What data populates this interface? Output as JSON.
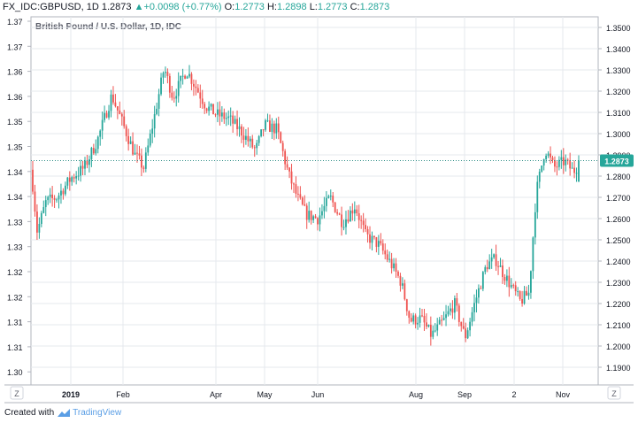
{
  "header": {
    "symbol": "FX_IDC:GBPUSD, 1D",
    "last": "1.2873",
    "change": "+0.0098 (+0.77%)",
    "o_label": "O:",
    "o_value": "1.2773",
    "h_label": "H:",
    "h_value": "1.2898",
    "l_label": "L:",
    "l_value": "1.2773",
    "c_label": "C:",
    "c_value": "1.2873"
  },
  "subtitle": "British Pound / U.S. Dollar, 1D, IDC",
  "footer": {
    "created_with": "Created with",
    "brand": "TradingView"
  },
  "colors": {
    "up": "#26a69a",
    "down": "#ef5350",
    "grid": "#e6e9ee",
    "axis": "#b2b5be",
    "last_line": "#2a8c84"
  },
  "chart_data": {
    "type": "candlestick",
    "left_axis": {
      "ticks": [
        "1.37",
        "1.37",
        "1.36",
        "1.36",
        "1.35",
        "1.35",
        "1.34",
        "1.34",
        "1.33",
        "1.33",
        "1.32",
        "1.32",
        "1.31",
        "1.31",
        "1.30"
      ]
    },
    "right_axis": {
      "min": 1.19,
      "max": 1.35,
      "ticks": [
        "1.3500",
        "1.3400",
        "1.3300",
        "1.3200",
        "1.3100",
        "1.3000",
        "1.2900",
        "1.2800",
        "1.2700",
        "1.2600",
        "1.2500",
        "1.2400",
        "1.2300",
        "1.2200",
        "1.2100",
        "1.2000",
        "1.1900"
      ]
    },
    "x_ticks": [
      "2019",
      "Feb",
      "Apr",
      "May",
      "Jun",
      "Aug",
      "Sep",
      "2",
      "Nov"
    ],
    "last_price_label": "1.2873",
    "last_price": 1.2873,
    "candles": []
  }
}
